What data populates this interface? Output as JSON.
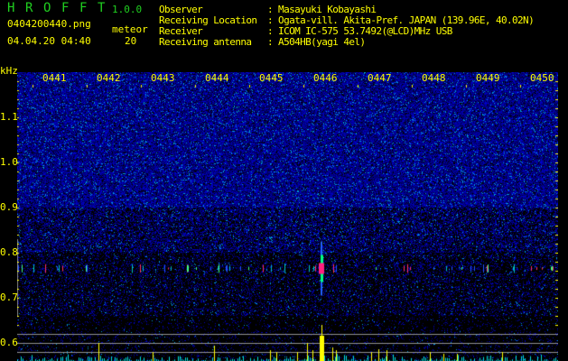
{
  "app": {
    "name_letters": [
      "H",
      "R",
      "O",
      "F",
      "F",
      "T"
    ],
    "version": "1.0.0"
  },
  "file": {
    "name": "0404200440.png",
    "datetime": "04.04.20 04:40",
    "meteor_label": "meteor",
    "meteor_count": "20"
  },
  "info": [
    {
      "label": "Observer",
      "value": "Masayuki Kobayashi"
    },
    {
      "label": "Receiving Location",
      "value": "Ogata-vill. Akita-Pref. JAPAN (139.96E, 40.02N)"
    },
    {
      "label": "Receiver",
      "value": "ICOM IC-575 53.7492(@LCD)MHz USB"
    },
    {
      "label": "Receiving antenna",
      "value": "A504HB(yagi 4el)"
    }
  ],
  "colors": {
    "text": "#ffff00",
    "title": "#20d020",
    "noise": "#1010c0",
    "hist_low": "#00e0e0",
    "hist_high": "#ffff00"
  },
  "chart_data": {
    "type": "heatmap",
    "ylabel": "kHz",
    "y_ticks": [
      "1.1",
      "1.0",
      "0.9",
      "0.8",
      "0.7",
      "0.6"
    ],
    "ylim": [
      0.56,
      1.2
    ],
    "x_ticks": [
      "0441",
      "0442",
      "0443",
      "0444",
      "0445",
      "0446",
      "0447",
      "0448",
      "0449",
      "0450"
    ],
    "echo_band_khz": 0.765,
    "strongest_echo_time": "0446",
    "reference_lines_khz": [
      0.58,
      0.6,
      0.62
    ]
  }
}
